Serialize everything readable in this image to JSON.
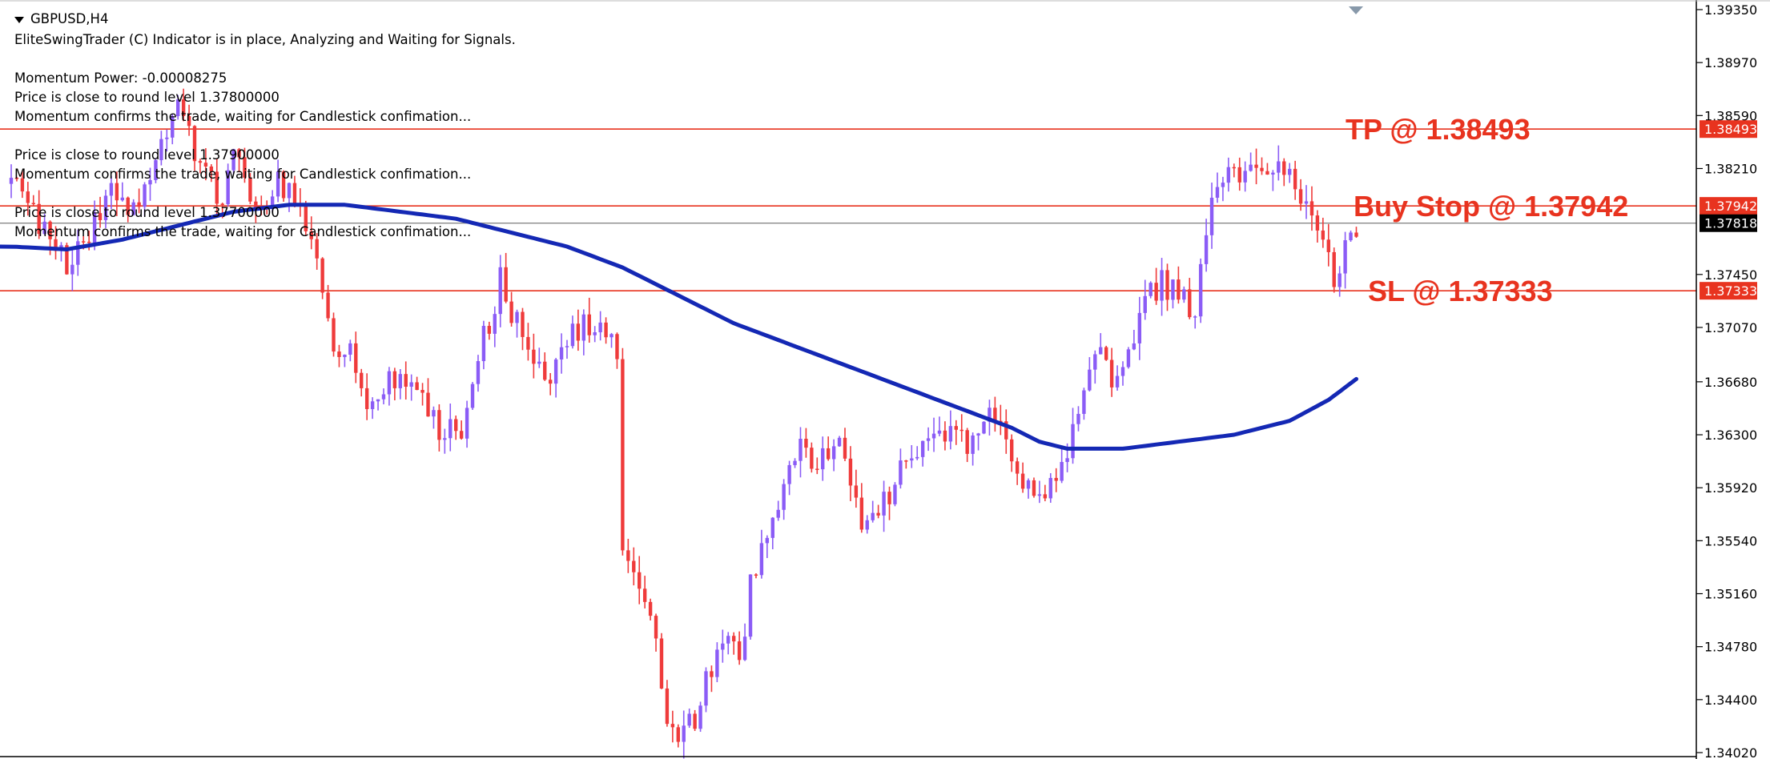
{
  "header": {
    "symbol": "GBPUSD,H4",
    "line1": "EliteSwingTrader (C) Indicator is in place, Analyzing and Waiting for Signals.",
    "line2": "Momentum Power: -0.00008275",
    "line3": "Price is close to round level 1.37800000",
    "line4": "Momentum confirms the trade, waiting for Candlestick confimation...",
    "line5": "Price is close to round level 1.37900000",
    "line6": "Momentum confirms the trade, waiting for Candlestick confimation...",
    "line7": "Price is close to round level 1.37700000",
    "line8": "Momentum confirms the trade, waiting for Candlestick confimation..."
  },
  "colors": {
    "bull": "#8b5cf6",
    "bear": "#ef3b3b",
    "ma": "#1428b4",
    "level": "#e8331f",
    "current": "#888888",
    "annotation": "#e8331f"
  },
  "chart_data": {
    "type": "candlestick",
    "y_axis": {
      "ticks": [
        "1.39350",
        "1.38970",
        "1.38590",
        "1.38210",
        "1.37450",
        "1.37070",
        "1.36680",
        "1.36300",
        "1.35920",
        "1.35540",
        "1.35160",
        "1.34780",
        "1.34400",
        "1.34020"
      ],
      "ylim": [
        1.3402,
        1.3935
      ]
    },
    "levels": [
      {
        "name": "tp",
        "price": 1.38493,
        "label": "1.38493",
        "annotation": "TP @ 1.38493"
      },
      {
        "name": "buy-stop",
        "price": 1.37942,
        "label": "1.37942",
        "annotation": "Buy Stop @ 1.37942"
      },
      {
        "name": "sl",
        "price": 1.37333,
        "label": "1.37333",
        "annotation": "SL @ 1.37333"
      }
    ],
    "current_price": {
      "price": 1.37818,
      "label": "1.37818"
    },
    "price_path": [
      [
        0,
        1.381
      ],
      [
        6,
        1.378
      ],
      [
        10,
        1.3755
      ],
      [
        14,
        1.377
      ],
      [
        18,
        1.381
      ],
      [
        22,
        1.379
      ],
      [
        26,
        1.383
      ],
      [
        30,
        1.387
      ],
      [
        34,
        1.382
      ],
      [
        38,
        1.38
      ],
      [
        40,
        1.384
      ],
      [
        44,
        1.379
      ],
      [
        48,
        1.381
      ],
      [
        52,
        1.38
      ],
      [
        55,
        1.376
      ],
      [
        58,
        1.37
      ],
      [
        61,
        1.369
      ],
      [
        64,
        1.365
      ],
      [
        67,
        1.366
      ],
      [
        70,
        1.368
      ],
      [
        74,
        1.365
      ],
      [
        78,
        1.363
      ],
      [
        82,
        1.364
      ],
      [
        85,
        1.37
      ],
      [
        88,
        1.374
      ],
      [
        91,
        1.371
      ],
      [
        94,
        1.368
      ],
      [
        97,
        1.367
      ],
      [
        100,
        1.37
      ],
      [
        103,
        1.371
      ],
      [
        106,
        1.37
      ],
      [
        109,
        1.369
      ],
      [
        110,
        1.354
      ],
      [
        113,
        1.353
      ],
      [
        115,
        1.351
      ],
      [
        117,
        1.344
      ],
      [
        120,
        1.342
      ],
      [
        123,
        1.343
      ],
      [
        126,
        1.346
      ],
      [
        129,
        1.348
      ],
      [
        131,
        1.347
      ],
      [
        133,
        1.352
      ],
      [
        136,
        1.356
      ],
      [
        139,
        1.36
      ],
      [
        142,
        1.362
      ],
      [
        145,
        1.36
      ],
      [
        148,
        1.363
      ],
      [
        150,
        1.362
      ],
      [
        153,
        1.356
      ],
      [
        156,
        1.357
      ],
      [
        159,
        1.36
      ],
      [
        162,
        1.361
      ],
      [
        165,
        1.362
      ],
      [
        167,
        1.363
      ],
      [
        170,
        1.363
      ],
      [
        173,
        1.362
      ],
      [
        176,
        1.364
      ],
      [
        179,
        1.363
      ],
      [
        181,
        1.36
      ],
      [
        184,
        1.359
      ],
      [
        186,
        1.358
      ],
      [
        189,
        1.361
      ],
      [
        192,
        1.365
      ],
      [
        195,
        1.369
      ],
      [
        198,
        1.367
      ],
      [
        201,
        1.369
      ],
      [
        204,
        1.373
      ],
      [
        207,
        1.374
      ],
      [
        210,
        1.373
      ],
      [
        213,
        1.372
      ],
      [
        216,
        1.379
      ],
      [
        219,
        1.383
      ],
      [
        222,
        1.381
      ],
      [
        225,
        1.382
      ],
      [
        228,
        1.383
      ],
      [
        231,
        1.381
      ],
      [
        234,
        1.379
      ],
      [
        236,
        1.377
      ],
      [
        238,
        1.374
      ],
      [
        240,
        1.376
      ],
      [
        242,
        1.378
      ]
    ],
    "ma_path": [
      [
        0,
        1.3765
      ],
      [
        10,
        1.3763
      ],
      [
        20,
        1.377
      ],
      [
        30,
        1.378
      ],
      [
        40,
        1.379
      ],
      [
        50,
        1.3795
      ],
      [
        60,
        1.3795
      ],
      [
        70,
        1.379
      ],
      [
        80,
        1.3785
      ],
      [
        90,
        1.3775
      ],
      [
        100,
        1.3765
      ],
      [
        110,
        1.375
      ],
      [
        120,
        1.373
      ],
      [
        130,
        1.371
      ],
      [
        140,
        1.3695
      ],
      [
        150,
        1.368
      ],
      [
        160,
        1.3665
      ],
      [
        170,
        1.365
      ],
      [
        180,
        1.3635
      ],
      [
        185,
        1.3625
      ],
      [
        190,
        1.362
      ],
      [
        200,
        1.362
      ],
      [
        210,
        1.3625
      ],
      [
        220,
        1.363
      ],
      [
        230,
        1.364
      ],
      [
        237,
        1.3655
      ],
      [
        242,
        1.367
      ]
    ]
  }
}
